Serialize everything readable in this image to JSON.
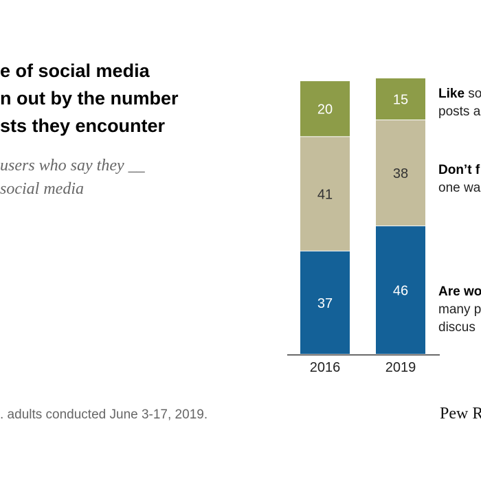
{
  "title_lines": [
    "e of social media",
    "n out by the number",
    "sts they encounter"
  ],
  "subtitle_lines": [
    "users who say they __",
    "social media"
  ],
  "source_note": ". adults conducted June 3-17, 2019.",
  "brand": "Pew R",
  "colors": {
    "like": "#8d9c48",
    "dont_feel": "#c4bd9c",
    "worn_out": "#146198",
    "axis": "#333333",
    "value_light": "#ffffff",
    "value_dark": "#333333"
  },
  "chart_data": {
    "type": "bar",
    "stacked": true,
    "orientation": "vertical",
    "categories": [
      "2016",
      "2019"
    ],
    "series": [
      {
        "name": "Are worn out",
        "values": [
          37,
          46
        ],
        "color": "#146198"
      },
      {
        "name": "Don't feel",
        "values": [
          41,
          38
        ],
        "color": "#c4bd9c"
      },
      {
        "name": "Like",
        "values": [
          20,
          15
        ],
        "color": "#8d9c48"
      }
    ],
    "ylim": [
      0,
      100
    ],
    "grid": false,
    "legend_placement": "right, aligned with segments"
  },
  "legend": [
    {
      "bold": "Like",
      "rest": " so",
      "line2": "posts a"
    },
    {
      "bold": "Don’t f",
      "rest": "",
      "line2": "one wa"
    },
    {
      "bold": "Are wo",
      "rest": "",
      "line2": "many p",
      "line3": "discus"
    }
  ]
}
